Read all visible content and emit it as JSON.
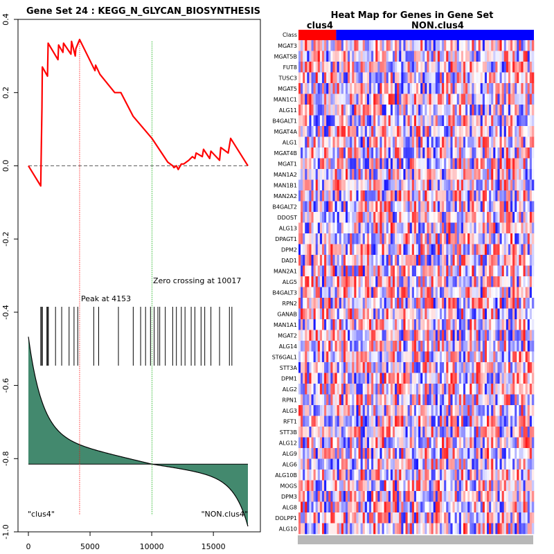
{
  "chart_data": [
    {
      "type": "line",
      "title": "Gene Set  24 : KEGG_N_GLYCAN_BIOSYNTHESIS",
      "xlim": [
        0,
        17800
      ],
      "ylim": [
        -1.0,
        0.4
      ],
      "x_ticks": [
        0,
        5000,
        10000,
        15000
      ],
      "x_tick_labels": [
        "0",
        "5000",
        "10000",
        "15000"
      ],
      "y_ticks": [
        -1.0,
        -0.8,
        -0.6,
        -0.4,
        -0.2,
        0.0,
        0.2,
        0.4
      ],
      "y_tick_labels": [
        "-1.0",
        "-0.8",
        "-0.6",
        "-0.4",
        "-0.2",
        "0.0",
        "0.2",
        "0.4"
      ],
      "colors": {
        "es_line": "#ff0000",
        "zero_line": "#555555",
        "peak_line": "#ff0000",
        "zero_cross_line": "#00aa00",
        "hits": "#000000",
        "metric_fill": "#43896e"
      },
      "running_es": [
        [
          0,
          0.0
        ],
        [
          1000,
          -0.055
        ],
        [
          1050,
          0.055
        ],
        [
          1100,
          0.16
        ],
        [
          1130,
          0.27
        ],
        [
          1550,
          0.245
        ],
        [
          1600,
          0.335
        ],
        [
          2400,
          0.29
        ],
        [
          2450,
          0.33
        ],
        [
          2800,
          0.31
        ],
        [
          2850,
          0.335
        ],
        [
          3450,
          0.305
        ],
        [
          3500,
          0.34
        ],
        [
          3800,
          0.3
        ],
        [
          3850,
          0.32
        ],
        [
          4153,
          0.345
        ],
        [
          5400,
          0.26
        ],
        [
          5450,
          0.275
        ],
        [
          5800,
          0.25
        ],
        [
          7000,
          0.2
        ],
        [
          7500,
          0.2
        ],
        [
          8500,
          0.135
        ],
        [
          10017,
          0.075
        ],
        [
          11300,
          0.01
        ],
        [
          11700,
          0.0
        ],
        [
          11800,
          -0.005
        ],
        [
          12000,
          0.0
        ],
        [
          12150,
          -0.01
        ],
        [
          12400,
          0.005
        ],
        [
          12600,
          0.005
        ],
        [
          13000,
          0.015
        ],
        [
          13300,
          0.025
        ],
        [
          13500,
          0.02
        ],
        [
          13600,
          0.035
        ],
        [
          14100,
          0.025
        ],
        [
          14200,
          0.045
        ],
        [
          14700,
          0.02
        ],
        [
          14800,
          0.04
        ],
        [
          15500,
          0.015
        ],
        [
          15600,
          0.05
        ],
        [
          16200,
          0.035
        ],
        [
          16400,
          0.075
        ],
        [
          17800,
          0.0
        ]
      ],
      "hit_positions": [
        1000,
        1080,
        1130,
        1500,
        1560,
        1620,
        2200,
        2700,
        3300,
        3700,
        4000,
        5300,
        5700,
        7300,
        8500,
        9100,
        9500,
        9900,
        10200,
        10500,
        10650,
        11100,
        11700,
        12000,
        12400,
        12700,
        13200,
        13500,
        14000,
        14300,
        14800,
        15500,
        16300,
        16500
      ],
      "peak": {
        "x": 4153,
        "label": "Peak at 4153"
      },
      "zero_crossing": {
        "x": 10017,
        "label": "Zero crossing at 10017"
      },
      "ranked_metric_baseline": -0.815,
      "phenotype_labels": {
        "left": "\"clus4\"",
        "right": "\"NON.clus4\""
      }
    },
    {
      "type": "heatmap",
      "title": "Heat Map for Genes in Gene Set",
      "class_row_label": "Class",
      "classes": [
        {
          "name": "clus4",
          "color": "#ff0000",
          "fraction": 0.16
        },
        {
          "name": "NON.clus4",
          "color": "#0000ff",
          "fraction": 0.84
        }
      ],
      "genes": [
        "MGAT3",
        "MGAT5B",
        "FUT8",
        "TUSC3",
        "MGAT5",
        "MAN1C1",
        "ALG11",
        "B4GALT1",
        "MGAT4A",
        "ALG1",
        "MGAT4B",
        "MGAT1",
        "MAN1A2",
        "MAN1B1",
        "MAN2A2",
        "B4GALT2",
        "DDOST",
        "ALG13",
        "DPAGT1",
        "DPM2",
        "DAD1",
        "MAN2A1",
        "ALG5",
        "B4GALT3",
        "RPN2",
        "GANAB",
        "MAN1A1",
        "MGAT2",
        "ALG14",
        "ST6GAL1",
        "STT3A",
        "DPM1",
        "ALG2",
        "RPN1",
        "ALG3",
        "RFT1",
        "STT3B",
        "ALG12",
        "ALG9",
        "ALG6",
        "ALG10B",
        "MOGS",
        "DPM3",
        "ALG8",
        "DOLPP1",
        "ALG10"
      ],
      "color_scale": [
        "#0000ff",
        "#ffffff",
        "#ff0000"
      ]
    }
  ]
}
